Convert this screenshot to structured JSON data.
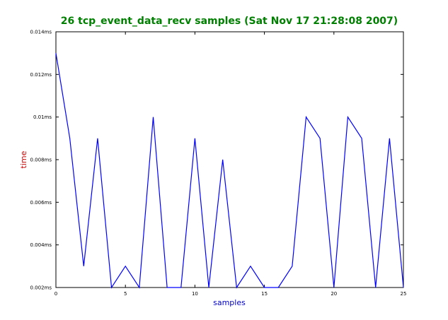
{
  "chart_data": {
    "type": "line",
    "title": "26 tcp_event_data_recv samples (Sat Nov 17 21:28:08 2007)",
    "xlabel": "samples",
    "ylabel": "time",
    "xlim": [
      0,
      25
    ],
    "ylim": [
      0.002,
      0.014
    ],
    "x_ticks": [
      0,
      5,
      10,
      15,
      20,
      25
    ],
    "x_tick_labels": [
      "0",
      "5",
      "10",
      "15",
      "20",
      "25"
    ],
    "y_ticks": [
      0.002,
      0.004,
      0.006,
      0.008,
      0.01,
      0.012,
      0.014
    ],
    "y_tick_labels": [
      "0.002ms",
      "0.004ms",
      "0.006ms",
      "0.008ms",
      "0.01ms",
      "0.012ms",
      "0.014ms"
    ],
    "grid": false,
    "legend": "none",
    "series": [
      {
        "x": [
          0,
          1,
          2,
          3,
          4,
          5,
          6,
          7,
          8,
          9,
          10,
          11,
          12,
          13,
          14,
          15,
          16,
          17,
          18,
          19,
          20,
          21,
          22,
          23,
          24,
          25
        ],
        "values": [
          0.013,
          0.009,
          0.003,
          0.009,
          0.002,
          0.003,
          0.002,
          0.01,
          0.002,
          0.002,
          0.009,
          0.002,
          0.008,
          0.002,
          0.003,
          0.002,
          0.002,
          0.003,
          0.01,
          0.009,
          0.002,
          0.01,
          0.009,
          0.002,
          0.009,
          0.002
        ]
      }
    ],
    "colors": {
      "title": "#008000",
      "xlabel": "#0000cc",
      "ylabel": "#cc0000",
      "line": "#0000ff",
      "axes": "#000000"
    }
  }
}
